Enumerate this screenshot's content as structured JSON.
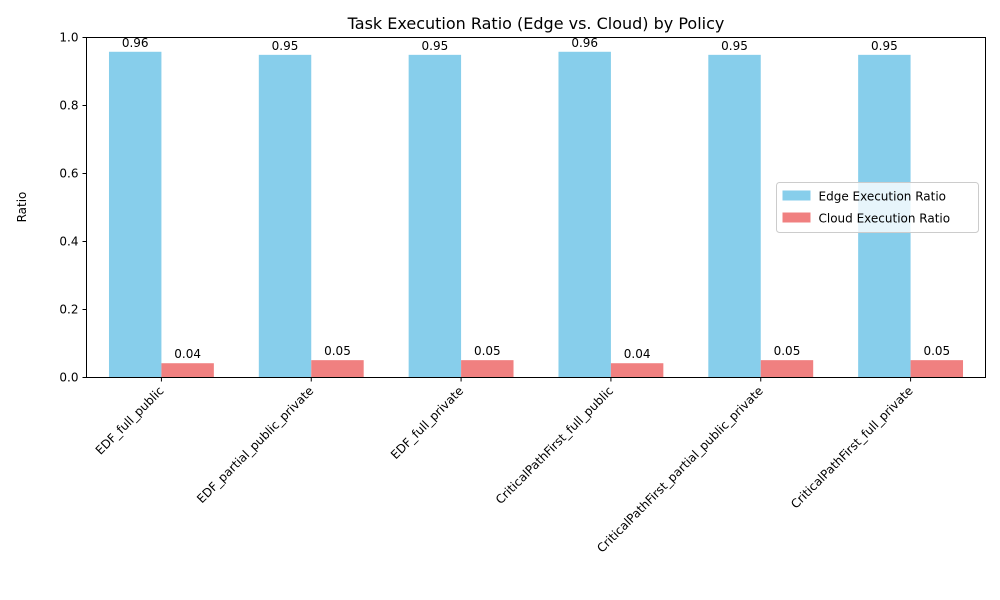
{
  "chart_data": {
    "type": "bar",
    "title": "Task Execution Ratio (Edge vs. Cloud) by Policy",
    "xlabel": "",
    "ylabel": "Ratio",
    "ylim": [
      0,
      1.0
    ],
    "yticks": [
      "0.0",
      "0.2",
      "0.4",
      "0.6",
      "0.8",
      "1.0"
    ],
    "categories": [
      "EDF_full_public",
      "EDF_partial_public_private",
      "EDF_full_private",
      "CriticalPathFirst_full_public",
      "CriticalPathFirst_partial_public_private",
      "CriticalPathFirst_full_private"
    ],
    "series": [
      {
        "name": "Edge Execution Ratio",
        "color": "#87ceeb",
        "values": [
          0.958,
          0.949,
          0.949,
          0.958,
          0.949,
          0.949
        ],
        "labels": [
          "0.96",
          "0.95",
          "0.95",
          "0.96",
          "0.95",
          "0.95"
        ]
      },
      {
        "name": "Cloud Execution Ratio",
        "color": "#f08080",
        "values": [
          0.042,
          0.051,
          0.051,
          0.042,
          0.051,
          0.051
        ],
        "labels": [
          "0.04",
          "0.05",
          "0.05",
          "0.04",
          "0.05",
          "0.05"
        ]
      }
    ],
    "legend_position": "center-right",
    "grid": false
  }
}
